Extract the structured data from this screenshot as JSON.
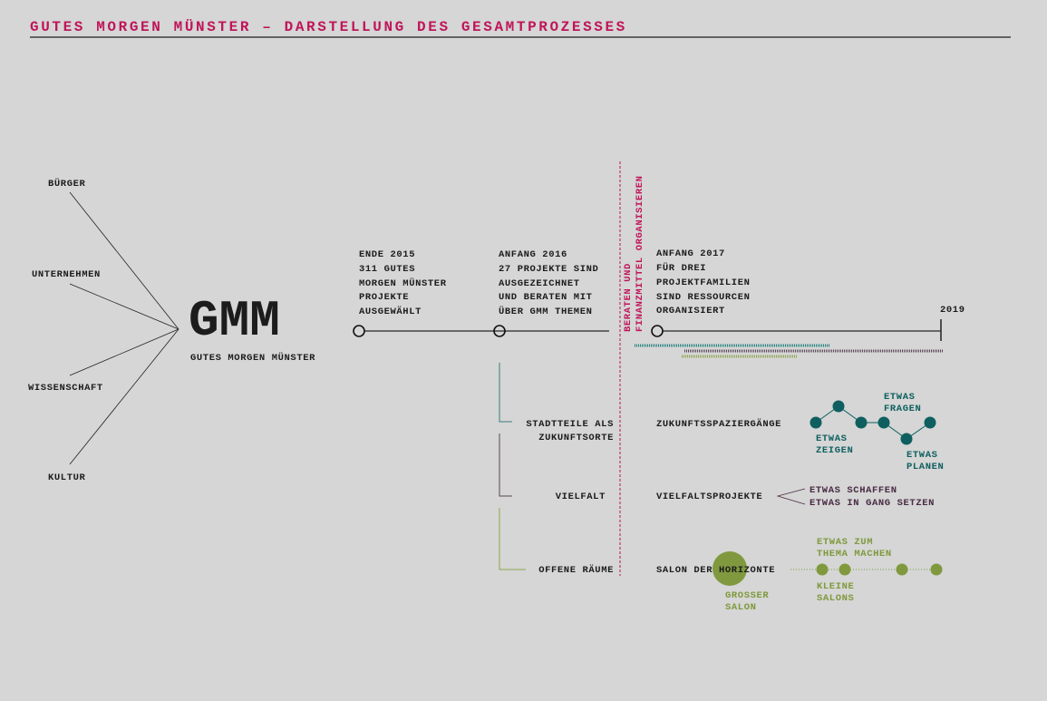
{
  "title": "GUTES MORGEN MÜNSTER – DARSTELLUNG DES GESAMTPROZESSES",
  "colors": {
    "accent": "#c0145a",
    "teal": "#0f5f60",
    "purple": "#4a2a45",
    "olive": "#80993e",
    "background": "#d5d6d5"
  },
  "actors": [
    "BÜRGER",
    "UNTERNEHMEN",
    "WISSENSCHAFT",
    "KULTUR"
  ],
  "logo": {
    "short": "GMM",
    "full": "GUTES MORGEN MÜNSTER"
  },
  "milestones": [
    {
      "lines": [
        "ENDE 2015",
        "311 GUTES",
        "MORGEN MÜNSTER",
        "PROJEKTE",
        "AUSGEWÄHLT"
      ]
    },
    {
      "lines": [
        "ANFANG 2016",
        "27 PROJEKTE SIND",
        "AUSGEZEICHNET",
        "UND BERATEN MIT",
        "ÜBER GMM THEMEN"
      ]
    },
    {
      "lines": [
        "ANFANG 2017",
        "FÜR DREI",
        "PROJEKTFAMILIEN",
        "SIND RESSOURCEN",
        "ORGANISIERT"
      ]
    }
  ],
  "end_year": "2019",
  "divider_label": [
    "BERATEN UND",
    "FINANZMITTEL ORGANISIEREN"
  ],
  "themes": [
    {
      "lines": [
        "STADTTEILE ALS",
        "ZUKUNFTSORTE"
      ],
      "project": "ZUKUNFTSSPAZIERGÄNGE"
    },
    {
      "lines": [
        "VIELFALT"
      ],
      "project": "VIELFALTSPROJEKTE"
    },
    {
      "lines": [
        "OFFENE RÄUME"
      ],
      "project": "SALON DER HORIZONTE"
    }
  ],
  "walks": {
    "zeigen": [
      "ETWAS",
      "ZEIGEN"
    ],
    "fragen": [
      "ETWAS",
      "FRAGEN"
    ],
    "planen": [
      "ETWAS",
      "PLANEN"
    ]
  },
  "vielfalt": [
    "ETWAS SCHAFFEN",
    "ETWAS IN GANG SETZEN"
  ],
  "salon": {
    "thema": [
      "ETWAS ZUM",
      "THEMA MACHEN"
    ],
    "kleine": [
      "KLEINE",
      "SALONS"
    ],
    "gross": [
      "GROSSER",
      "SALON"
    ]
  }
}
